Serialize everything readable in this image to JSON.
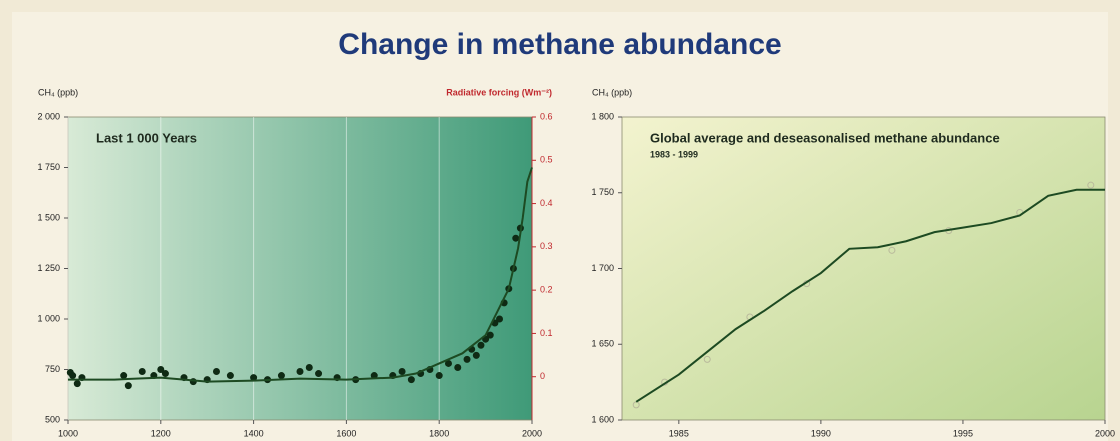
{
  "title": "Change in methane abundance",
  "chart_data": [
    {
      "type": "line",
      "title": "Last 1 000 Years",
      "ylabel": "CH₄ (ppb)",
      "y2label": "Radiative forcing (Wm⁻²)",
      "xlim": [
        1000,
        2000
      ],
      "xticks": [
        1000,
        1200,
        1400,
        1600,
        1800,
        2000
      ],
      "ylim": [
        500,
        2000
      ],
      "yticks": [
        500,
        750,
        {
          "value": 1000,
          "label": "1 000"
        },
        {
          "value": 1250,
          "label": "1 250"
        },
        {
          "value": 1500,
          "label": "1 500"
        },
        {
          "value": 1750,
          "label": "1 750"
        },
        {
          "value": 2000,
          "label": "2 000"
        }
      ],
      "y2lim": [
        -0.1,
        0.6
      ],
      "y2ticks": [
        0,
        0.1,
        0.2,
        0.3,
        0.4,
        0.5,
        0.6
      ],
      "grid": true,
      "series": [
        {
          "mode": "markers",
          "color": "#0f2a14",
          "x": [
            1005,
            1010,
            1020,
            1030,
            1120,
            1130,
            1160,
            1185,
            1200,
            1210,
            1250,
            1270,
            1300,
            1320,
            1350,
            1400,
            1430,
            1460,
            1500,
            1520,
            1540,
            1580,
            1620,
            1660,
            1700,
            1720,
            1740,
            1760,
            1780,
            1800,
            1820,
            1840,
            1860,
            1870,
            1880,
            1890,
            1900,
            1910,
            1920,
            1930,
            1940,
            1950,
            1960,
            1965,
            1975
          ],
          "values": [
            735,
            720,
            680,
            710,
            720,
            670,
            740,
            720,
            750,
            730,
            710,
            690,
            700,
            740,
            720,
            710,
            700,
            720,
            740,
            760,
            730,
            710,
            700,
            720,
            720,
            740,
            700,
            730,
            750,
            720,
            780,
            760,
            800,
            850,
            820,
            870,
            900,
            920,
            980,
            1000,
            1080,
            1150,
            1250,
            1400,
            1450
          ]
        },
        {
          "mode": "line",
          "color": "#1d4a22",
          "x": [
            1000,
            1100,
            1200,
            1300,
            1400,
            1500,
            1600,
            1700,
            1750,
            1800,
            1850,
            1900,
            1950,
            1970,
            1980,
            1990,
            2000
          ],
          "values": [
            700,
            700,
            710,
            690,
            695,
            705,
            700,
            710,
            730,
            780,
            830,
            920,
            1150,
            1350,
            1500,
            1680,
            1750
          ]
        }
      ]
    },
    {
      "type": "line",
      "title": "Global average and deseasonalised methane abundance",
      "subtitle": "1983 - 1999",
      "ylabel": "CH₄ (ppb)",
      "xlim": [
        1983,
        2000
      ],
      "xticks": [
        1985,
        1990,
        1995,
        2000
      ],
      "ylim": [
        1600,
        1800
      ],
      "yticks": [
        {
          "value": 1600,
          "label": "1 600"
        },
        {
          "value": 1650,
          "label": "1 650"
        },
        {
          "value": 1700,
          "label": "1 700"
        },
        {
          "value": 1750,
          "label": "1 750"
        },
        {
          "value": 1800,
          "label": "1 800"
        }
      ],
      "grid": false,
      "series": [
        {
          "mode": "markers",
          "color": "#b9b99c",
          "x": [
            1983.5,
            1984.5,
            1986,
            1987.5,
            1989.5,
            1992.5,
            1994.5,
            1997,
            1999.5
          ],
          "values": [
            1610,
            1625,
            1640,
            1668,
            1690,
            1712,
            1725,
            1737,
            1755
          ]
        },
        {
          "mode": "line",
          "color": "#1d4a22",
          "x": [
            1983.5,
            1985,
            1986,
            1987,
            1988,
            1989,
            1990,
            1991,
            1992,
            1993,
            1994,
            1995,
            1996,
            1997,
            1998,
            1999,
            2000
          ],
          "values": [
            1612,
            1630,
            1645,
            1660,
            1672,
            1685,
            1697,
            1713,
            1714,
            1718,
            1724,
            1727,
            1730,
            1735,
            1748,
            1752,
            1752
          ]
        }
      ]
    }
  ]
}
